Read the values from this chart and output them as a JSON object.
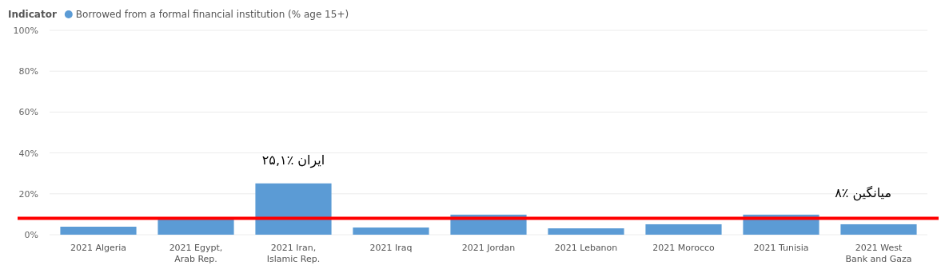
{
  "chart_data": {
    "type": "bar",
    "legend_title": "Indicator",
    "legend": "top left",
    "grid": "y",
    "categories": [
      "2021 Algeria",
      "2021 Egypt, Arab Rep.",
      "2021 Iran, Islamic Rep.",
      "2021 Iraq",
      "2021 Jordan",
      "2021 Lebanon",
      "2021 Morocco",
      "2021 Tunisia",
      "2021 West Bank and Gaza"
    ],
    "series": [
      {
        "name": "Borrowed from a formal financial institution (% age 15+)",
        "color": "#5b9bd5",
        "values": [
          3.9,
          7.4,
          25.1,
          3.5,
          9.8,
          3.1,
          5.1,
          9.8,
          5.1
        ]
      }
    ],
    "ylim": [
      0,
      100
    ],
    "yticks": [
      {
        "value": 0,
        "label": "0%"
      },
      {
        "value": 20,
        "label": "20%"
      },
      {
        "value": 40,
        "label": "40%"
      },
      {
        "value": 60,
        "label": "60%"
      },
      {
        "value": 80,
        "label": "80%"
      },
      {
        "value": 100,
        "label": "100%"
      }
    ],
    "ref_lines": [
      {
        "axis": "y",
        "value": 8,
        "label": "میانگین ٪۸",
        "color": "#ff0000"
      }
    ],
    "annotations": [
      {
        "text": "ایران ٪۲۵,۱",
        "x": "2021 Iran, Islamic Rep.",
        "y": 25.1
      }
    ]
  }
}
